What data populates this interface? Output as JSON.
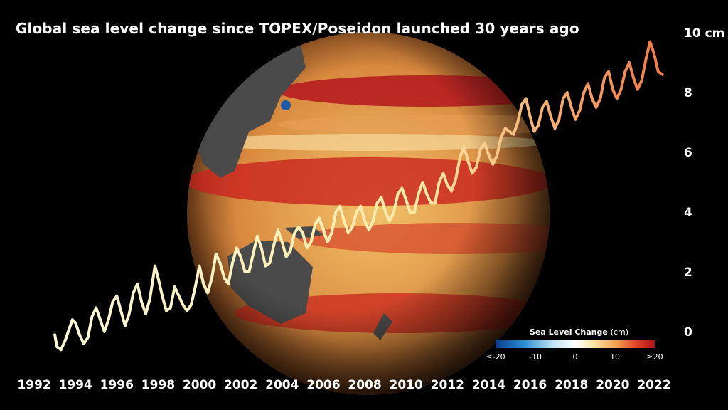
{
  "title": "Global sea level change since TOPEX/Poseidon launched 30 years ago",
  "colorbar": {
    "title": "Sea Level Change",
    "unit": "(cm)",
    "ticks": [
      "≤-20",
      "-10",
      "0",
      "10",
      "≥20"
    ],
    "colors": [
      "#0b3b8c",
      "#2b8fd1",
      "#ffffff",
      "#f3a050",
      "#b0101a"
    ]
  },
  "chart_data": {
    "type": "line",
    "title": "Global sea level change since TOPEX/Poseidon launched 30 years ago",
    "xlabel": "",
    "ylabel": "",
    "xlim": [
      1992,
      2022.5
    ],
    "ylim": [
      -1,
      10
    ],
    "x_ticks": [
      "1992",
      "1994",
      "1996",
      "1998",
      "2000",
      "2002",
      "2004",
      "2006",
      "2008",
      "2010",
      "2012",
      "2014",
      "2016",
      "2018",
      "2020",
      "2022"
    ],
    "y_ticks": [
      "10 cm",
      "8",
      "6",
      "4",
      "2",
      "0"
    ],
    "line_color_start": "#fff9d8",
    "line_color_end": "#f07a45",
    "series": [
      {
        "values": [
          [
            1993.0,
            -0.1
          ],
          [
            1993.1,
            -0.5
          ],
          [
            1993.3,
            -0.6
          ],
          [
            1993.5,
            -0.3
          ],
          [
            1993.7,
            0.1
          ],
          [
            1993.85,
            0.4
          ],
          [
            1994.0,
            0.3
          ],
          [
            1994.2,
            -0.1
          ],
          [
            1994.4,
            -0.4
          ],
          [
            1994.6,
            -0.2
          ],
          [
            1994.8,
            0.5
          ],
          [
            1995.0,
            0.8
          ],
          [
            1995.2,
            0.4
          ],
          [
            1995.4,
            0.0
          ],
          [
            1995.6,
            0.4
          ],
          [
            1995.8,
            1.0
          ],
          [
            1996.0,
            1.2
          ],
          [
            1996.2,
            0.7
          ],
          [
            1996.4,
            0.2
          ],
          [
            1996.6,
            0.6
          ],
          [
            1996.8,
            1.3
          ],
          [
            1997.0,
            1.6
          ],
          [
            1997.2,
            1.0
          ],
          [
            1997.4,
            0.6
          ],
          [
            1997.6,
            1.1
          ],
          [
            1997.85,
            2.2
          ],
          [
            1998.0,
            1.8
          ],
          [
            1998.2,
            1.2
          ],
          [
            1998.4,
            0.7
          ],
          [
            1998.6,
            0.8
          ],
          [
            1998.8,
            1.5
          ],
          [
            1999.0,
            1.2
          ],
          [
            1999.2,
            0.9
          ],
          [
            1999.4,
            0.7
          ],
          [
            1999.6,
            0.9
          ],
          [
            1999.8,
            1.5
          ],
          [
            2000.0,
            2.2
          ],
          [
            2000.2,
            1.6
          ],
          [
            2000.4,
            1.3
          ],
          [
            2000.6,
            1.8
          ],
          [
            2000.8,
            2.6
          ],
          [
            2001.0,
            2.3
          ],
          [
            2001.2,
            1.8
          ],
          [
            2001.4,
            1.6
          ],
          [
            2001.6,
            2.3
          ],
          [
            2001.8,
            2.8
          ],
          [
            2002.0,
            2.5
          ],
          [
            2002.2,
            2.0
          ],
          [
            2002.4,
            2.0
          ],
          [
            2002.6,
            2.6
          ],
          [
            2002.8,
            3.2
          ],
          [
            2003.0,
            2.8
          ],
          [
            2003.2,
            2.2
          ],
          [
            2003.4,
            2.3
          ],
          [
            2003.6,
            2.9
          ],
          [
            2003.8,
            3.4
          ],
          [
            2004.0,
            3.0
          ],
          [
            2004.2,
            2.5
          ],
          [
            2004.4,
            2.7
          ],
          [
            2004.6,
            3.3
          ],
          [
            2004.8,
            3.5
          ],
          [
            2005.0,
            3.3
          ],
          [
            2005.2,
            2.8
          ],
          [
            2005.4,
            3.0
          ],
          [
            2005.6,
            3.6
          ],
          [
            2005.8,
            3.8
          ],
          [
            2006.0,
            3.4
          ],
          [
            2006.2,
            3.0
          ],
          [
            2006.4,
            3.3
          ],
          [
            2006.6,
            4.0
          ],
          [
            2006.8,
            4.2
          ],
          [
            2007.0,
            3.7
          ],
          [
            2007.2,
            3.3
          ],
          [
            2007.4,
            3.5
          ],
          [
            2007.6,
            4.0
          ],
          [
            2007.8,
            4.2
          ],
          [
            2008.0,
            3.7
          ],
          [
            2008.2,
            3.4
          ],
          [
            2008.4,
            3.7
          ],
          [
            2008.6,
            4.3
          ],
          [
            2008.8,
            4.5
          ],
          [
            2009.0,
            4.0
          ],
          [
            2009.2,
            3.7
          ],
          [
            2009.4,
            4.0
          ],
          [
            2009.6,
            4.6
          ],
          [
            2009.8,
            4.8
          ],
          [
            2010.0,
            4.4
          ],
          [
            2010.2,
            4.0
          ],
          [
            2010.4,
            4.0
          ],
          [
            2010.6,
            4.6
          ],
          [
            2010.8,
            5.0
          ],
          [
            2011.0,
            4.6
          ],
          [
            2011.2,
            4.3
          ],
          [
            2011.4,
            4.3
          ],
          [
            2011.6,
            5.0
          ],
          [
            2011.8,
            5.3
          ],
          [
            2012.0,
            4.9
          ],
          [
            2012.2,
            4.7
          ],
          [
            2012.4,
            5.1
          ],
          [
            2012.6,
            5.8
          ],
          [
            2012.8,
            6.2
          ],
          [
            2013.0,
            5.7
          ],
          [
            2013.2,
            5.3
          ],
          [
            2013.4,
            5.5
          ],
          [
            2013.6,
            6.1
          ],
          [
            2013.8,
            6.3
          ],
          [
            2014.0,
            5.9
          ],
          [
            2014.2,
            5.6
          ],
          [
            2014.4,
            5.9
          ],
          [
            2014.6,
            6.5
          ],
          [
            2014.8,
            6.8
          ],
          [
            2015.0,
            6.7
          ],
          [
            2015.2,
            6.6
          ],
          [
            2015.4,
            7.0
          ],
          [
            2015.6,
            7.6
          ],
          [
            2015.8,
            7.8
          ],
          [
            2016.0,
            7.2
          ],
          [
            2016.2,
            6.7
          ],
          [
            2016.4,
            6.9
          ],
          [
            2016.6,
            7.5
          ],
          [
            2016.8,
            7.7
          ],
          [
            2017.0,
            7.2
          ],
          [
            2017.2,
            6.8
          ],
          [
            2017.4,
            7.1
          ],
          [
            2017.6,
            7.8
          ],
          [
            2017.8,
            8.0
          ],
          [
            2018.0,
            7.5
          ],
          [
            2018.2,
            7.1
          ],
          [
            2018.4,
            7.4
          ],
          [
            2018.6,
            8.0
          ],
          [
            2018.8,
            8.3
          ],
          [
            2019.0,
            7.8
          ],
          [
            2019.2,
            7.5
          ],
          [
            2019.4,
            7.8
          ],
          [
            2019.6,
            8.5
          ],
          [
            2019.8,
            8.7
          ],
          [
            2020.0,
            8.1
          ],
          [
            2020.2,
            7.8
          ],
          [
            2020.4,
            8.1
          ],
          [
            2020.6,
            8.7
          ],
          [
            2020.8,
            9.0
          ],
          [
            2021.0,
            8.5
          ],
          [
            2021.2,
            8.1
          ],
          [
            2021.4,
            8.4
          ],
          [
            2021.6,
            9.1
          ],
          [
            2021.8,
            9.7
          ],
          [
            2022.0,
            9.3
          ],
          [
            2022.2,
            8.7
          ],
          [
            2022.4,
            8.6
          ]
        ]
      }
    ]
  }
}
